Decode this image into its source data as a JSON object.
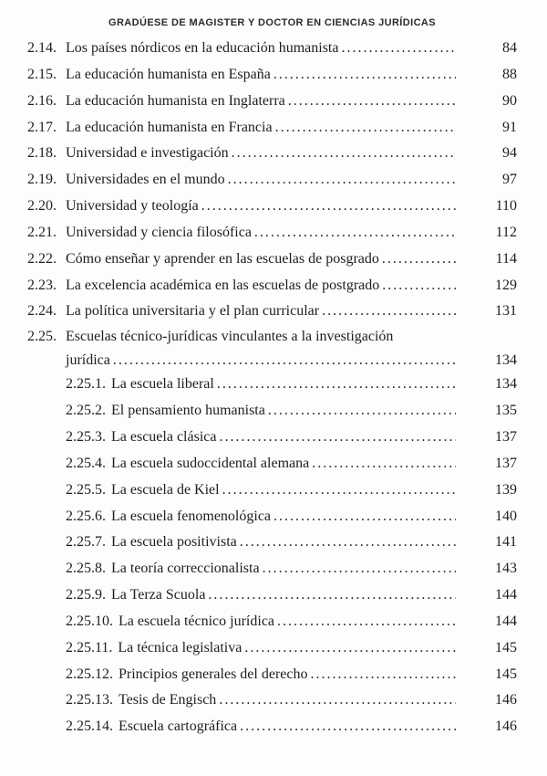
{
  "header": {
    "title": "GRADÚESE DE MAGISTER Y DOCTOR EN CIENCIAS JURÍDICAS"
  },
  "toc": {
    "rows": [
      {
        "number": "2.14.",
        "title": "Los países nórdicos en la educación humanista",
        "page": "84",
        "level": 1,
        "leader": true
      },
      {
        "number": "2.15.",
        "title": "La educación humanista en España",
        "page": "88",
        "level": 1,
        "leader": true
      },
      {
        "number": "2.16.",
        "title": "La educación humanista en Inglaterra",
        "page": "90",
        "level": 1,
        "leader": true
      },
      {
        "number": "2.17.",
        "title": "La educación humanista en Francia",
        "page": "91",
        "level": 1,
        "leader": true
      },
      {
        "number": "2.18.",
        "title": "Universidad e investigación",
        "page": "94",
        "level": 1,
        "leader": true
      },
      {
        "number": "2.19.",
        "title": "Universidades en el mundo",
        "page": "97",
        "level": 1,
        "leader": true
      },
      {
        "number": "2.20.",
        "title": "Universidad y teología",
        "page": "110",
        "level": 1,
        "leader": true
      },
      {
        "number": "2.21.",
        "title": "Universidad y ciencia filosófica",
        "page": "112",
        "level": 1,
        "leader": true
      },
      {
        "number": "2.22.",
        "title": "Cómo enseñar y aprender en las escuelas de posgrado",
        "page": "114",
        "level": 1,
        "leader": true
      },
      {
        "number": "2.23.",
        "title": "La excelencia académica en las escuelas de postgrado",
        "page": "129",
        "level": 1,
        "leader": true
      },
      {
        "number": "2.24.",
        "title": "La política universitaria y el plan curricular",
        "page": "131",
        "level": 1,
        "leader": true
      },
      {
        "number": "2.25.",
        "title": "Escuelas técnico-jurídicas vinculantes a la investigación",
        "page": "",
        "level": 1,
        "leader": false,
        "wrap_first": true
      },
      {
        "number": "",
        "title": "jurídica",
        "page": "134",
        "level": 1,
        "leader": true,
        "continuation": true
      },
      {
        "number": "2.25.1.",
        "title": "La escuela liberal",
        "page": "134",
        "level": 2,
        "leader": true
      },
      {
        "number": "2.25.2.",
        "title": "El pensamiento humanista",
        "page": "135",
        "level": 2,
        "leader": true
      },
      {
        "number": "2.25.3.",
        "title": "La escuela clásica",
        "page": "137",
        "level": 2,
        "leader": true
      },
      {
        "number": "2.25.4.",
        "title": "La escuela sudoccidental alemana",
        "page": "137",
        "level": 2,
        "leader": true
      },
      {
        "number": "2.25.5.",
        "title": "La escuela de Kiel",
        "page": "139",
        "level": 2,
        "leader": true
      },
      {
        "number": "2.25.6.",
        "title": "La escuela fenomenológica",
        "page": "140",
        "level": 2,
        "leader": true
      },
      {
        "number": "2.25.7.",
        "title": "La escuela positivista",
        "page": "141",
        "level": 2,
        "leader": true
      },
      {
        "number": "2.25.8.",
        "title": "La teoría correccionalista",
        "page": "143",
        "level": 2,
        "leader": true
      },
      {
        "number": "2.25.9.",
        "title": "La Terza Scuola",
        "page": "144",
        "level": 2,
        "leader": true
      },
      {
        "number": "2.25.10.",
        "title": "La escuela técnico jurídica",
        "page": "144",
        "level": 2,
        "leader": true
      },
      {
        "number": "2.25.11.",
        "title": "La técnica legislativa",
        "page": "145",
        "level": 2,
        "leader": true
      },
      {
        "number": "2.25.12.",
        "title": "Principios generales del derecho",
        "page": "145",
        "level": 2,
        "leader": true
      },
      {
        "number": "2.25.13.",
        "title": "Tesis de Engisch",
        "page": "146",
        "level": 2,
        "leader": true
      },
      {
        "number": "2.25.14.",
        "title": "Escuela cartográfica",
        "page": "146",
        "level": 2,
        "leader": true
      }
    ]
  }
}
